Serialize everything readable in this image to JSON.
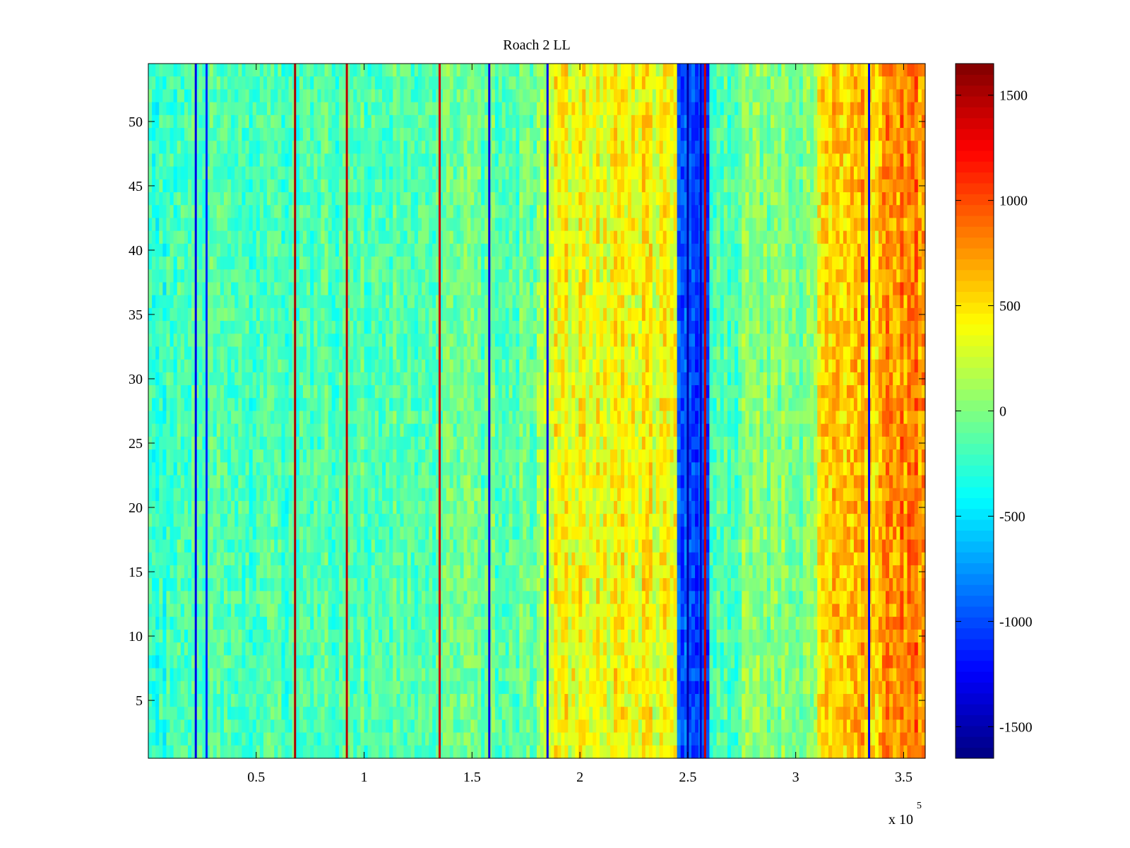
{
  "chart_data": {
    "type": "heatmap",
    "title": "Roach 2 LL",
    "xlabel": "",
    "ylabel": "",
    "x_multiplier_label": "x 10",
    "x_multiplier_exponent": "5",
    "xlim": [
      0,
      360000
    ],
    "ylim": [
      0.5,
      54.5
    ],
    "x_ticks": [
      {
        "value": 50000,
        "label": "0.5"
      },
      {
        "value": 100000,
        "label": "1"
      },
      {
        "value": 150000,
        "label": "1.5"
      },
      {
        "value": 200000,
        "label": "2"
      },
      {
        "value": 250000,
        "label": "2.5"
      },
      {
        "value": 300000,
        "label": "3"
      },
      {
        "value": 350000,
        "label": "3.5"
      }
    ],
    "y_ticks": [
      {
        "value": 5,
        "label": "5"
      },
      {
        "value": 10,
        "label": "10"
      },
      {
        "value": 15,
        "label": "15"
      },
      {
        "value": 20,
        "label": "20"
      },
      {
        "value": 25,
        "label": "25"
      },
      {
        "value": 30,
        "label": "30"
      },
      {
        "value": 35,
        "label": "35"
      },
      {
        "value": 40,
        "label": "40"
      },
      {
        "value": 45,
        "label": "45"
      },
      {
        "value": 50,
        "label": "50"
      }
    ],
    "colorbar": {
      "colormap": "jet",
      "clim": [
        -1650,
        1650
      ],
      "ticks": [
        {
          "value": -1500,
          "label": "-1500"
        },
        {
          "value": -1000,
          "label": "-1000"
        },
        {
          "value": -500,
          "label": "-500"
        },
        {
          "value": 0,
          "label": "0"
        },
        {
          "value": 500,
          "label": "500"
        },
        {
          "value": 1000,
          "label": "1000"
        },
        {
          "value": 1500,
          "label": "1500"
        }
      ]
    },
    "rows": 54,
    "column_bands": [
      {
        "x_start": 0,
        "x_end": 20000,
        "mean": -250,
        "spread": 250
      },
      {
        "x_start": 20000,
        "x_end": 60000,
        "mean": -180,
        "spread": 230
      },
      {
        "x_start": 60000,
        "x_end": 90000,
        "mean": -170,
        "spread": 220
      },
      {
        "x_start": 90000,
        "x_end": 130000,
        "mean": -140,
        "spread": 220
      },
      {
        "x_start": 130000,
        "x_end": 180000,
        "mean": -100,
        "spread": 230
      },
      {
        "x_start": 180000,
        "x_end": 188000,
        "mean": 100,
        "spread": 250
      },
      {
        "x_start": 188000,
        "x_end": 245000,
        "mean": 380,
        "spread": 280
      },
      {
        "x_start": 245000,
        "x_end": 260000,
        "mean": -1000,
        "spread": 220
      },
      {
        "x_start": 260000,
        "x_end": 275000,
        "mean": -150,
        "spread": 220
      },
      {
        "x_start": 275000,
        "x_end": 310000,
        "mean": 0,
        "spread": 230
      },
      {
        "x_start": 310000,
        "x_end": 322000,
        "mean": 550,
        "spread": 280
      },
      {
        "x_start": 322000,
        "x_end": 340000,
        "mean": 650,
        "spread": 300
      },
      {
        "x_start": 340000,
        "x_end": 360000,
        "mean": 800,
        "spread": 300
      }
    ],
    "strong_vertical_lines": [
      {
        "x": 22000,
        "value": -1300
      },
      {
        "x": 27000,
        "value": -1100
      },
      {
        "x": 68000,
        "value": 1500
      },
      {
        "x": 92000,
        "value": 1450
      },
      {
        "x": 135000,
        "value": 1400
      },
      {
        "x": 158000,
        "value": -1300
      },
      {
        "x": 185000,
        "value": -1300
      },
      {
        "x": 250000,
        "value": -1500
      },
      {
        "x": 256000,
        "value": -1400
      },
      {
        "x": 258000,
        "value": 1400
      },
      {
        "x": 334000,
        "value": -1300
      }
    ]
  }
}
